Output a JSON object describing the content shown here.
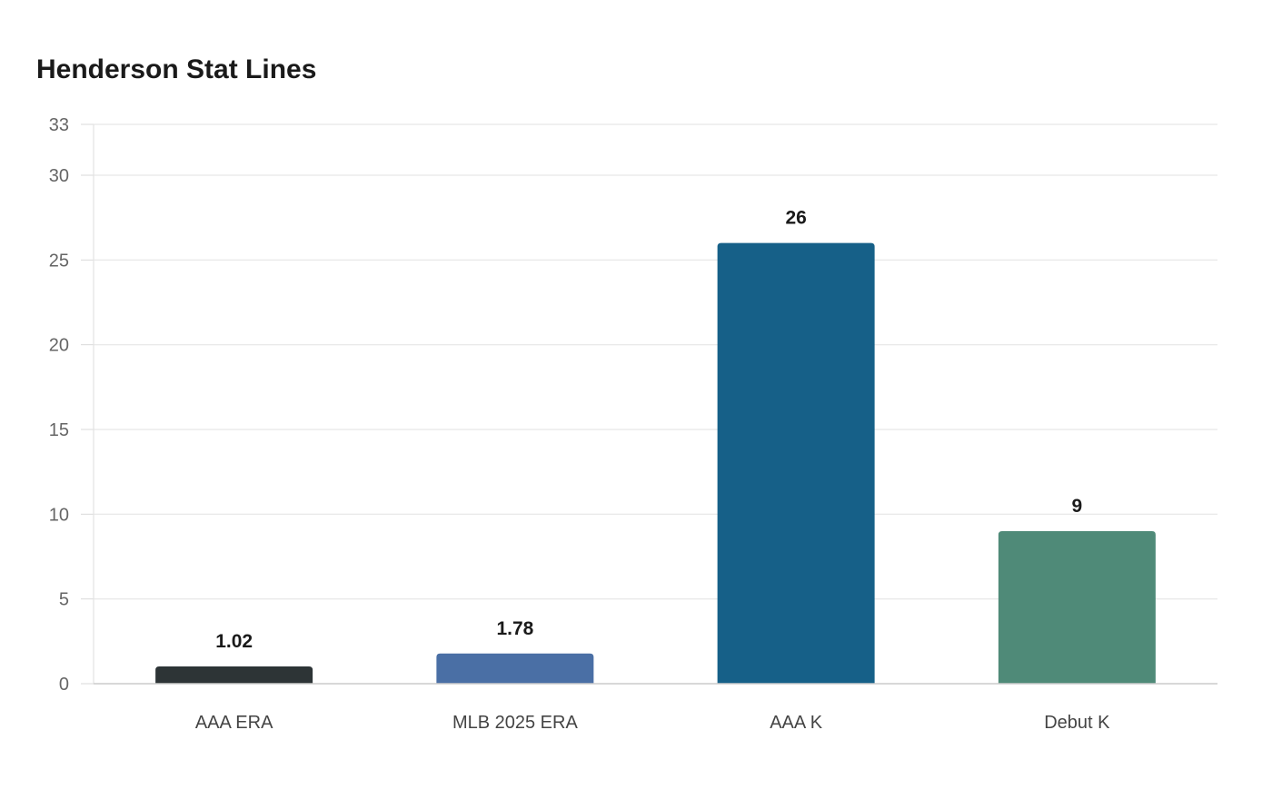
{
  "chart_data": {
    "type": "bar",
    "title": "Henderson Stat Lines",
    "xlabel": "",
    "ylabel": "",
    "categories": [
      "AAA ERA",
      "MLB 2025 ERA",
      "AAA K",
      "Debut K"
    ],
    "values": [
      1.02,
      1.78,
      26,
      9
    ],
    "value_labels": [
      "1.02",
      "1.78",
      "26",
      "9"
    ],
    "colors": [
      "#2d3436",
      "#4a6fa5",
      "#166088",
      "#4f8a78"
    ],
    "ylim": [
      0,
      33
    ],
    "yticks": [
      0,
      5,
      10,
      15,
      20,
      25,
      30,
      33
    ],
    "grid": true,
    "legend": "none"
  }
}
